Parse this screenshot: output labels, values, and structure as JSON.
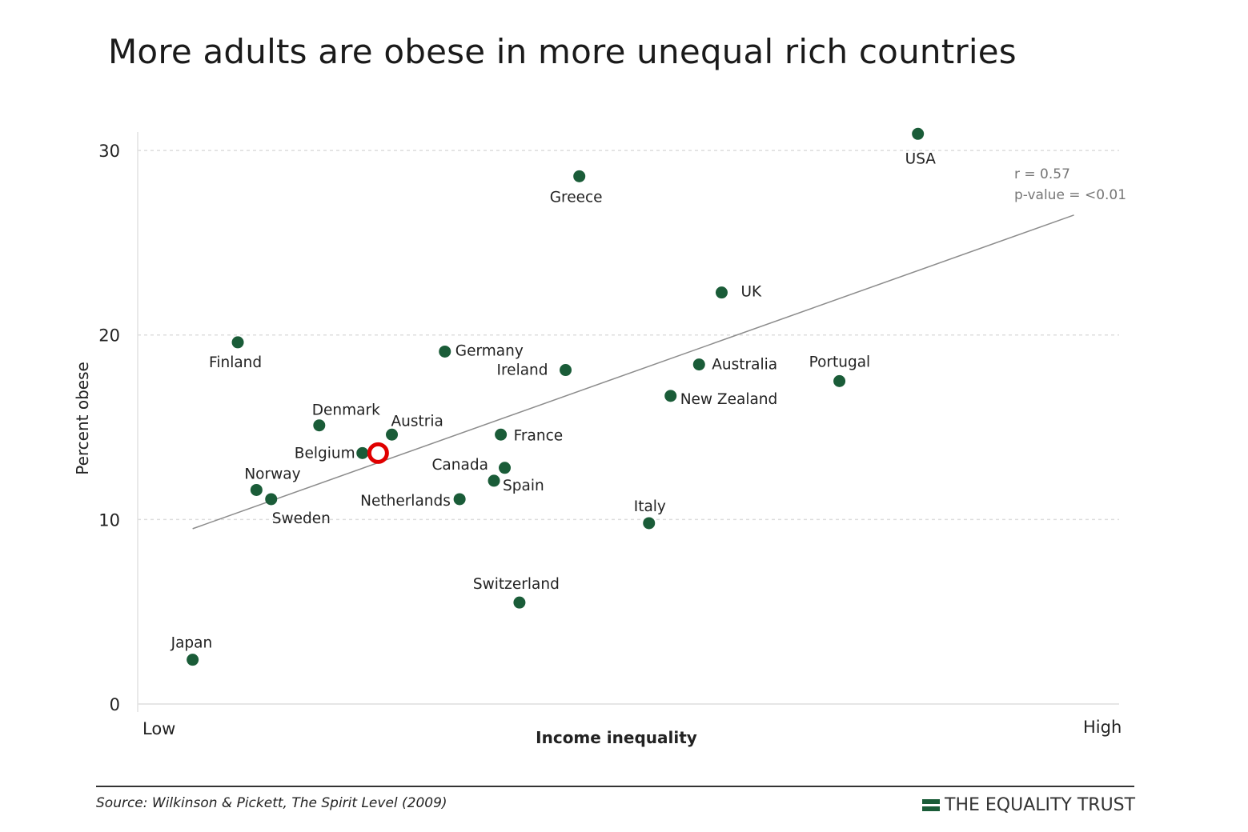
{
  "chart_data": {
    "type": "scatter",
    "title": "More adults are obese in more unequal rich countries",
    "xlabel": "Income inequality",
    "ylabel": "Percent obese",
    "x_tick_labels": [
      "Low",
      "High"
    ],
    "xlim": [
      0,
      100
    ],
    "ylim": [
      0,
      31
    ],
    "yticks": [
      0,
      10,
      20,
      30
    ],
    "grid": "horizontal dashed",
    "colors": {
      "point": "#1a5c38",
      "trend": "#8c8c8c",
      "highlight": "#e00000"
    },
    "points": [
      {
        "label": "USA",
        "x": 79.5,
        "y": 30.9
      },
      {
        "label": "Greece",
        "x": 45.0,
        "y": 28.6
      },
      {
        "label": "UK",
        "x": 59.5,
        "y": 22.3
      },
      {
        "label": "Finland",
        "x": 10.2,
        "y": 19.6
      },
      {
        "label": "Germany",
        "x": 31.3,
        "y": 19.1
      },
      {
        "label": "Ireland",
        "x": 43.6,
        "y": 18.1
      },
      {
        "label": "Australia",
        "x": 57.2,
        "y": 18.4
      },
      {
        "label": "Portugal",
        "x": 71.5,
        "y": 17.5
      },
      {
        "label": "New Zealand",
        "x": 54.3,
        "y": 16.7
      },
      {
        "label": "Denmark",
        "x": 18.5,
        "y": 15.1
      },
      {
        "label": "Austria",
        "x": 25.9,
        "y": 14.6
      },
      {
        "label": "France",
        "x": 37.0,
        "y": 14.6
      },
      {
        "label": "Belgium",
        "x": 22.9,
        "y": 13.6
      },
      {
        "label": "Canada",
        "x": 37.4,
        "y": 12.8
      },
      {
        "label": "Spain",
        "x": 36.3,
        "y": 12.1
      },
      {
        "label": "Norway",
        "x": 12.1,
        "y": 11.6
      },
      {
        "label": "Sweden",
        "x": 13.6,
        "y": 11.1
      },
      {
        "label": "Netherlands",
        "x": 32.8,
        "y": 11.1
      },
      {
        "label": "Italy",
        "x": 52.1,
        "y": 9.8
      },
      {
        "label": "Switzerland",
        "x": 38.9,
        "y": 5.5
      },
      {
        "label": "Japan",
        "x": 5.6,
        "y": 2.4
      }
    ],
    "trend_line": {
      "x": [
        5.6,
        95.4
      ],
      "y": [
        9.5,
        26.5
      ]
    },
    "highlight_marker": {
      "x": 24.5,
      "y": 13.6
    },
    "annotations": [
      "r = 0.57",
      "p-value = <0.01"
    ]
  },
  "footer": {
    "source": "Source: Wilkinson & Pickett, The Spirit Level (2009)",
    "brand": "THE EQUALITY TRUST"
  }
}
